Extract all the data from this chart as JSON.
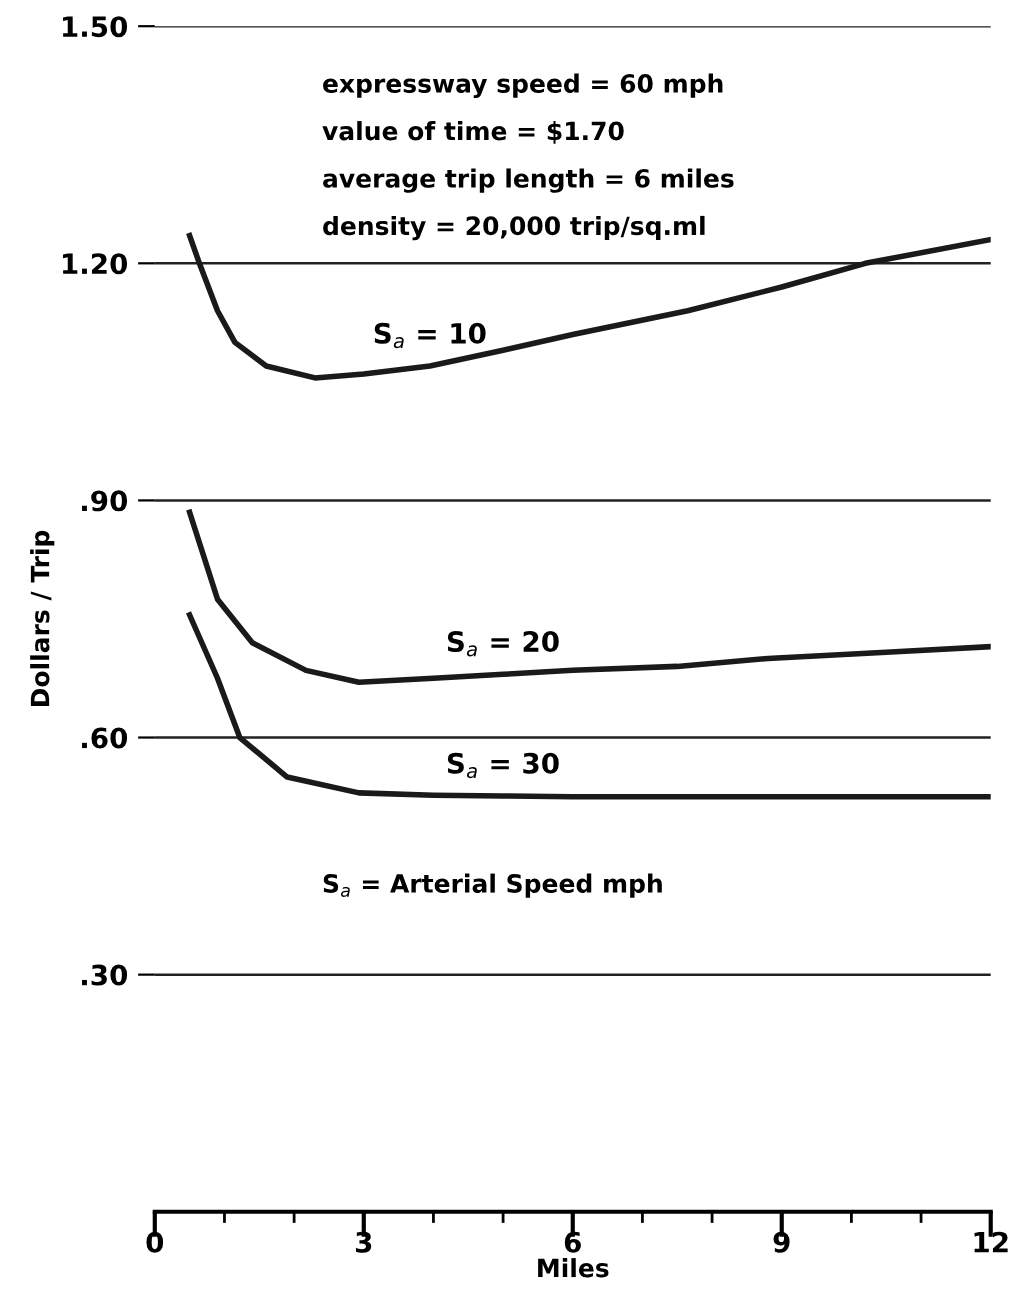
{
  "chart_data": {
    "type": "line",
    "xlabel": "Miles",
    "ylabel": "Dollars / Trip",
    "xlim": [
      0,
      12
    ],
    "ylim": [
      0,
      1.5
    ],
    "xticks": [
      0,
      {
        "value": 1,
        "label": null
      },
      {
        "value": 2,
        "label": null
      },
      3,
      {
        "value": 4,
        "label": null
      },
      {
        "value": 5,
        "label": null
      },
      6,
      {
        "value": 7,
        "label": null
      },
      {
        "value": 8,
        "label": null
      },
      9,
      {
        "value": 10,
        "label": null
      },
      {
        "value": 11,
        "label": null
      },
      12
    ],
    "yticks": [
      {
        "value": 0.3,
        "label": ".30"
      },
      {
        "value": 0.6,
        "label": ".60"
      },
      {
        "value": 0.9,
        "label": ".90"
      },
      {
        "value": 1.2,
        "label": "1.20"
      },
      {
        "value": 1.5,
        "label": "1.50"
      }
    ],
    "grid": "y",
    "legend": false,
    "marker": "none",
    "line_style": "solid",
    "series": [
      {
        "name": "S$_{a}$ = 10",
        "color": "#1a1a1a",
        "x": [
          0.5,
          0.64,
          0.9,
          1.15,
          1.6,
          2.3,
          3.0,
          3.95,
          5.0,
          6.0,
          7.65,
          9.0,
          10.2,
          12.0
        ],
        "values": [
          1.235,
          1.2,
          1.14,
          1.1,
          1.07,
          1.055,
          1.06,
          1.07,
          1.09,
          1.11,
          1.14,
          1.17,
          1.2,
          1.23
        ]
      },
      {
        "name": "S$_{a}$ = 20",
        "color": "#1a1a1a",
        "x": [
          0.5,
          0.9,
          1.4,
          2.17,
          2.93,
          4.0,
          5.0,
          6.0,
          7.5,
          8.8,
          10.5,
          12.0
        ],
        "values": [
          0.885,
          0.775,
          0.72,
          0.685,
          0.67,
          0.675,
          0.68,
          0.685,
          0.69,
          0.7,
          0.708,
          0.715
        ]
      },
      {
        "name": "S$_{a}$ = 30",
        "color": "#1a1a1a",
        "x": [
          0.5,
          0.9,
          1.22,
          1.9,
          2.93,
          4.0,
          5.0,
          6.0,
          7.5,
          9.0,
          10.5,
          12.0
        ],
        "values": [
          0.755,
          0.675,
          0.6,
          0.55,
          0.53,
          0.527,
          0.526,
          0.525,
          0.525,
          0.525,
          0.525,
          0.525
        ]
      }
    ],
    "annotations": [
      "expressway speed = 60 mph",
      "value of time = $1.70",
      "average trip length = 6 miles",
      "density = 20,000 trip/sq.ml",
      "S$_{a}$ = Arterial Speed mph"
    ]
  }
}
